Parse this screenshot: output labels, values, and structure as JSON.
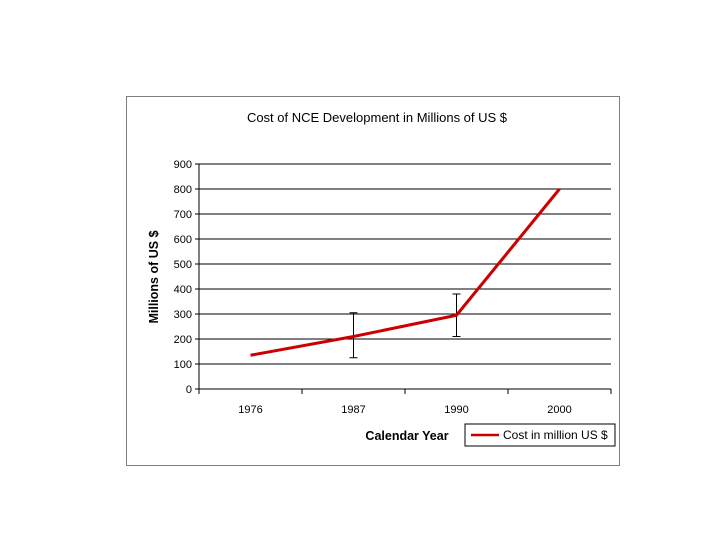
{
  "chart_data": {
    "type": "line",
    "title": "Cost of NCE Development in Millions of US $",
    "xlabel": "Calendar Year",
    "ylabel": "Millions of US $",
    "categories": [
      "1976",
      "1987",
      "1990",
      "2000"
    ],
    "ylim": [
      0,
      900
    ],
    "yticks": [
      "0",
      "100",
      "200",
      "300",
      "400",
      "500",
      "600",
      "700",
      "800",
      "900"
    ],
    "grid": true,
    "highlight_gridline": 800,
    "legend": "bottom-right",
    "series": [
      {
        "name": "Cost in million US $",
        "color": "#cc0000",
        "values": [
          135,
          210,
          295,
          800
        ],
        "error_bars": [
          null,
          [
            125,
            305
          ],
          [
            210,
            380
          ],
          null
        ]
      }
    ]
  }
}
